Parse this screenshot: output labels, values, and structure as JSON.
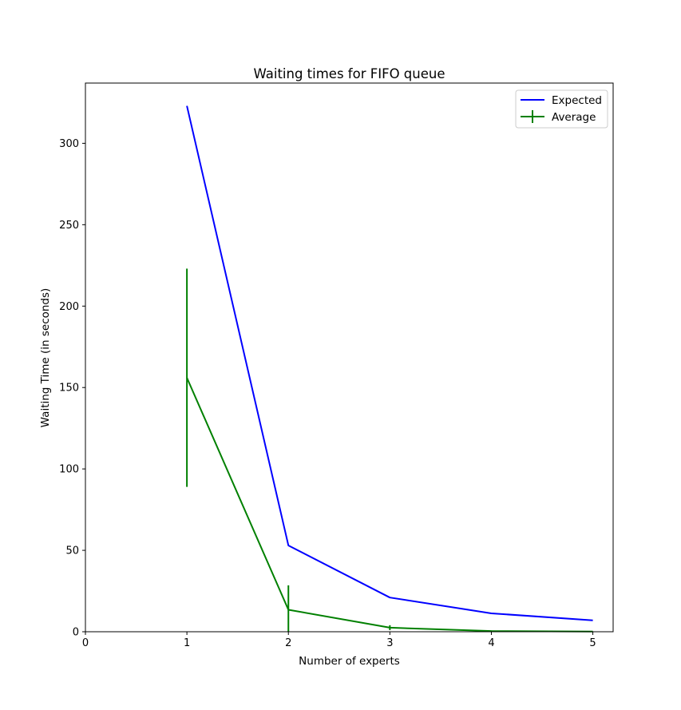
{
  "chart_data": {
    "type": "line",
    "title": "Waiting times for FIFO queue",
    "xlabel": "Number of experts",
    "ylabel": "Waiting Time (in seconds)",
    "xlim": [
      0,
      5.2
    ],
    "ylim": [
      0,
      337
    ],
    "xticks": [
      0,
      1,
      2,
      3,
      4,
      5
    ],
    "yticks": [
      0,
      50,
      100,
      150,
      200,
      250,
      300
    ],
    "grid": false,
    "legend_position": "top-right",
    "series": [
      {
        "name": "Expected",
        "color": "#0000ff",
        "x": [
          1,
          2,
          3,
          4,
          5
        ],
        "y": [
          323,
          53,
          21,
          11.3,
          7
        ]
      },
      {
        "name": "Average",
        "color": "#008000",
        "x": [
          1,
          2,
          3,
          4,
          5
        ],
        "y": [
          156,
          13.5,
          2.5,
          0.4,
          0.1
        ],
        "yerr": [
          67,
          15,
          1.5,
          0.3,
          0.1
        ]
      }
    ]
  }
}
